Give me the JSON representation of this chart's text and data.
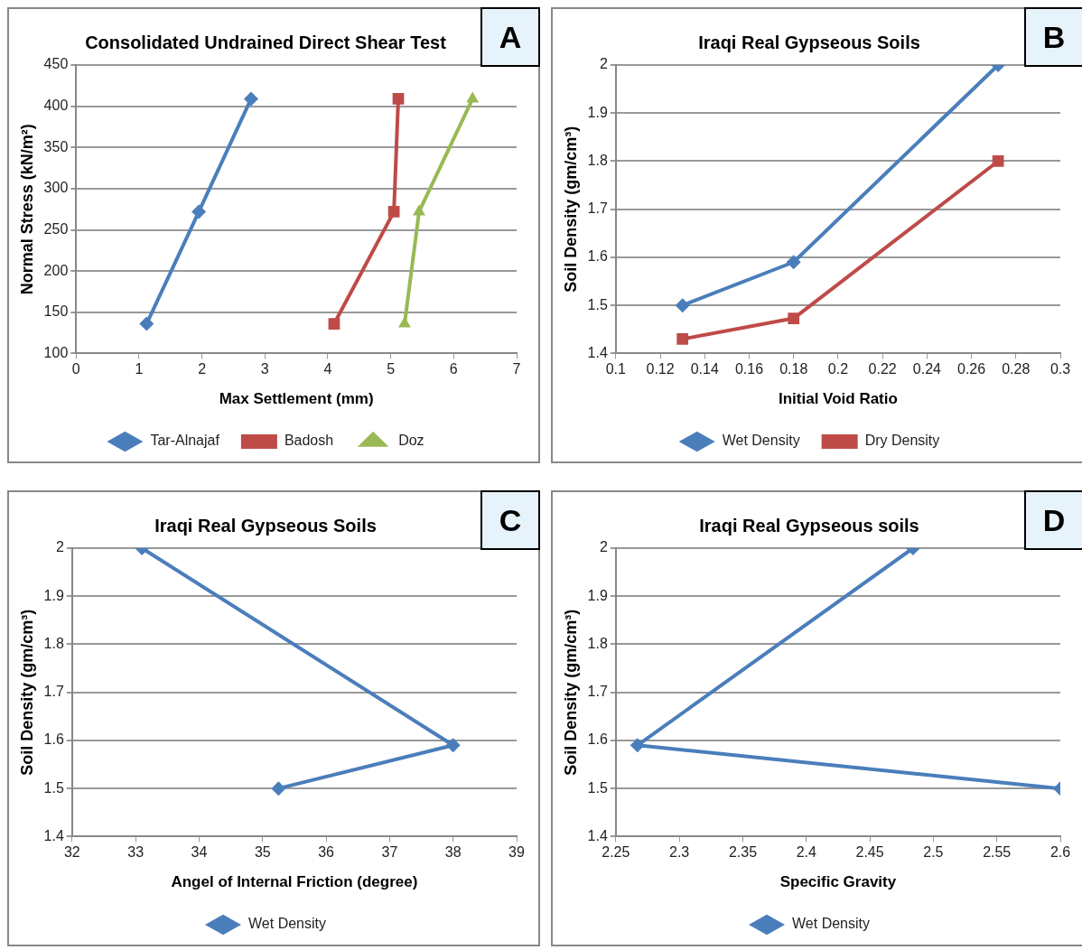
{
  "chart_data": [
    {
      "type": "line",
      "title": "Consolidated Undrained Direct Shear Test",
      "xlabel": "Max Settlement (mm)",
      "ylabel": "Normal Stress (kN/m²)",
      "xlim": [
        0,
        7
      ],
      "xticks": [
        0,
        1,
        2,
        3,
        4,
        5,
        6,
        7
      ],
      "ylim": [
        100,
        450
      ],
      "yticks": [
        100,
        150,
        200,
        250,
        300,
        350,
        400,
        450
      ],
      "grid": "y",
      "legend": "bottom",
      "annotations": [
        "A"
      ],
      "series": [
        {
          "name": "Tar-Alnajaf",
          "color": "#4a7ebb",
          "marker": "diamond",
          "x": [
            1.12,
            1.95,
            2.78
          ],
          "values": [
            136,
            272,
            409
          ]
        },
        {
          "name": "Badosh",
          "color": "#be4b48",
          "marker": "square",
          "x": [
            4.1,
            5.05,
            5.12
          ],
          "values": [
            136,
            272,
            409
          ]
        },
        {
          "name": "Doz",
          "color": "#98b954",
          "marker": "triangle",
          "x": [
            5.22,
            5.45,
            6.3
          ],
          "values": [
            136,
            272,
            409
          ]
        }
      ]
    },
    {
      "type": "line",
      "title": "Iraqi Real Gypseous Soils",
      "xlabel": "Initial Void Ratio",
      "ylabel": "Soil Density (gm/cm³)",
      "xlim": [
        0.1,
        0.3
      ],
      "xticks": [
        0.1,
        0.12,
        0.14,
        0.16,
        0.18,
        0.2,
        0.22,
        0.24,
        0.26,
        0.28,
        0.3
      ],
      "ylim": [
        1.4,
        2
      ],
      "yticks": [
        1.4,
        1.5,
        1.6,
        1.7,
        1.8,
        1.9,
        2
      ],
      "grid": "y",
      "legend": "bottom",
      "annotations": [
        "B"
      ],
      "series": [
        {
          "name": "Wet Density",
          "color": "#4a7ebb",
          "marker": "diamond",
          "x": [
            0.13,
            0.18,
            0.272
          ],
          "values": [
            1.5,
            1.59,
            2.0
          ]
        },
        {
          "name": "Dry Density",
          "color": "#be4b48",
          "marker": "square",
          "x": [
            0.13,
            0.18,
            0.272
          ],
          "values": [
            1.43,
            1.473,
            1.8
          ]
        }
      ]
    },
    {
      "type": "line",
      "title": "Iraqi Real Gypseous Soils",
      "xlabel": "Angel of Internal Friction (degree)",
      "ylabel": "Soil Density (gm/cm³)",
      "xlim": [
        32,
        39
      ],
      "xticks": [
        32,
        33,
        34,
        35,
        36,
        37,
        38,
        39
      ],
      "ylim": [
        1.4,
        2
      ],
      "yticks": [
        1.4,
        1.5,
        1.6,
        1.7,
        1.8,
        1.9,
        2
      ],
      "grid": "y",
      "legend": "bottom",
      "annotations": [
        "C"
      ],
      "series": [
        {
          "name": "Wet Density",
          "color": "#4a7ebb",
          "marker": "diamond",
          "x": [
            33.1,
            38.0,
            35.25
          ],
          "values": [
            2.0,
            1.59,
            1.5
          ]
        }
      ]
    },
    {
      "type": "line",
      "title": "Iraqi Real Gypseous soils",
      "xlabel": "Specific Gravity",
      "ylabel": "Soil Density (gm/cm³)",
      "xlim": [
        2.25,
        2.6
      ],
      "xticks": [
        2.25,
        2.3,
        2.35,
        2.4,
        2.45,
        2.5,
        2.55,
        2.6
      ],
      "ylim": [
        1.4,
        2
      ],
      "yticks": [
        1.4,
        1.5,
        1.6,
        1.7,
        1.8,
        1.9,
        2
      ],
      "grid": "y",
      "legend": "bottom",
      "annotations": [
        "D"
      ],
      "series": [
        {
          "name": "Wet Density",
          "color": "#4a7ebb",
          "marker": "diamond",
          "x": [
            2.484,
            2.267,
            2.6
          ],
          "values": [
            2.0,
            1.59,
            1.5
          ]
        }
      ]
    }
  ]
}
